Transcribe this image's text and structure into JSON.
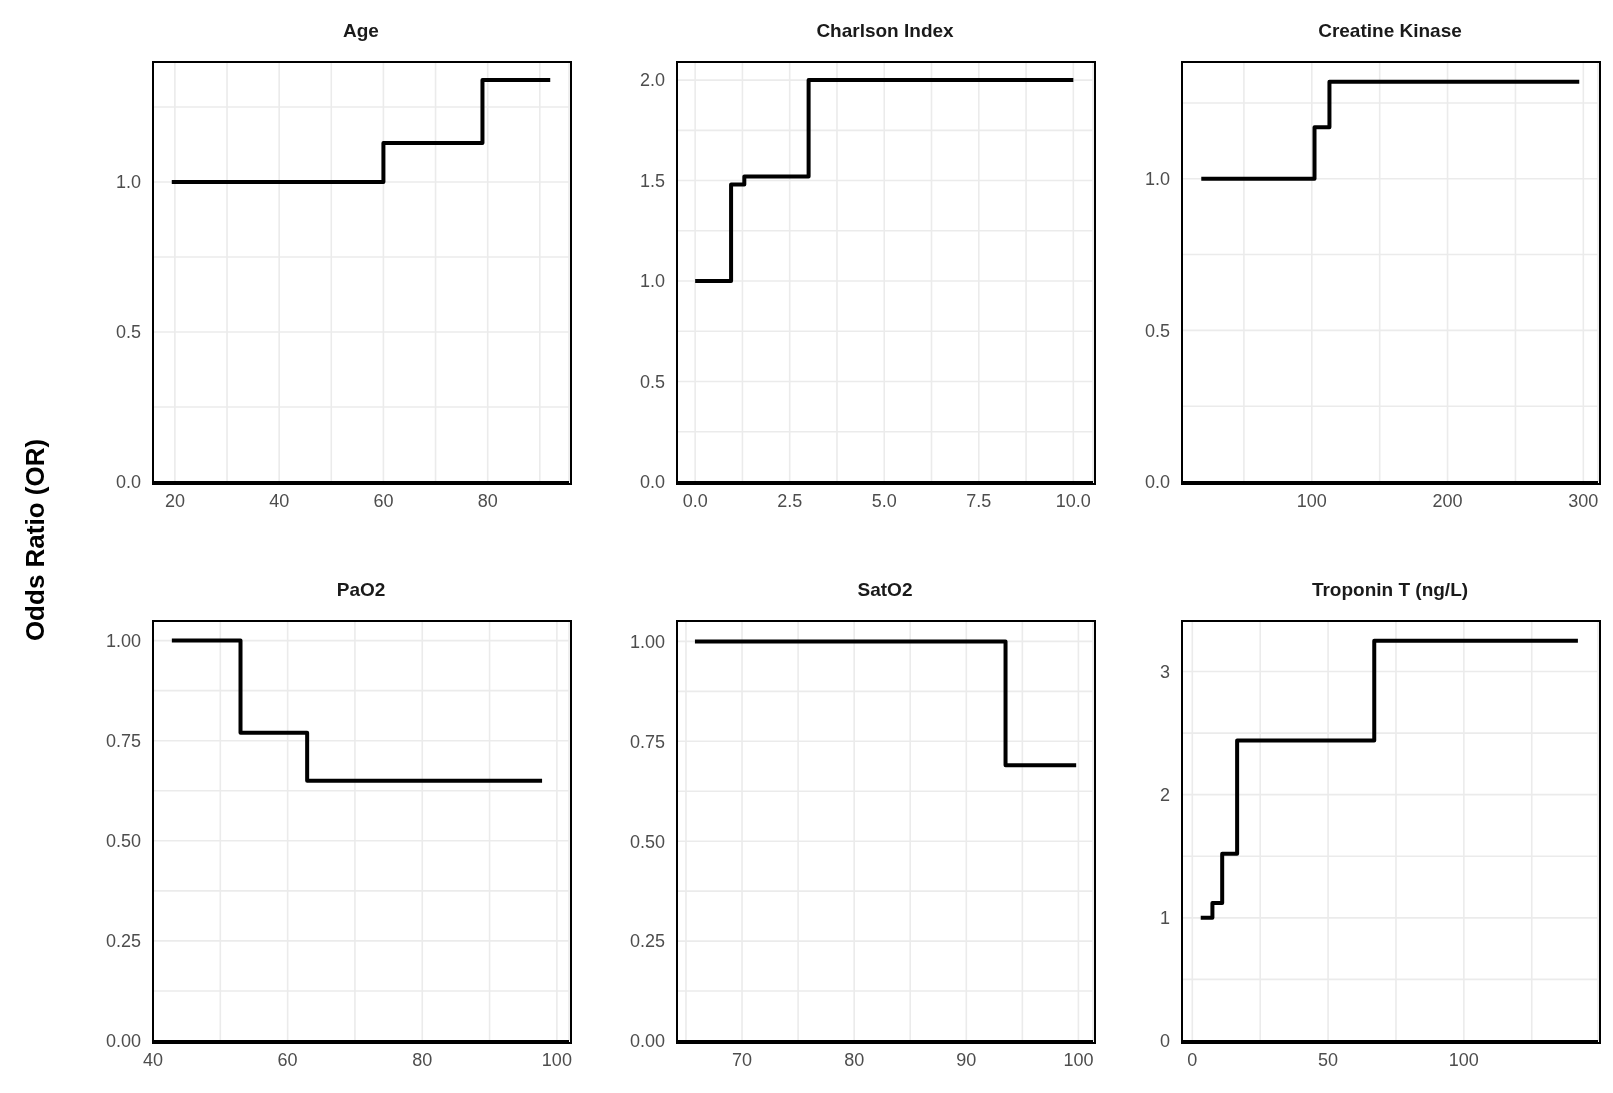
{
  "chart_data": [
    {
      "type": "step",
      "title": "Age",
      "ylabel": "Odds Ratio (OR)",
      "x": [
        19.4,
        60,
        79,
        92
      ],
      "values": [
        1,
        1.13,
        1.34,
        1.34
      ],
      "color": "#000000",
      "xlim": [
        15.8,
        95.6
      ],
      "ylim": [
        0,
        1.4
      ],
      "xticks": [
        20,
        {
          "value": 30,
          "label": null
        },
        40,
        {
          "value": 50,
          "label": null
        },
        60,
        {
          "value": 70,
          "label": null
        },
        80,
        {
          "value": 90,
          "label": null
        }
      ],
      "yticks": [
        {
          "value": 0,
          "label": "0.0"
        },
        {
          "value": 0.25,
          "label": null
        },
        {
          "value": 0.5,
          "label": "0.5"
        },
        {
          "value": 0.75,
          "label": null
        },
        {
          "value": 1,
          "label": "1.0"
        },
        {
          "value": 1.25,
          "label": null
        }
      ],
      "grid": true
    },
    {
      "type": "step",
      "title": "Charlson Index",
      "x": [
        0,
        0.95,
        1.3,
        3,
        10
      ],
      "values": [
        1,
        1.48,
        1.52,
        2,
        2
      ],
      "color": "#000000",
      "xlim": [
        -0.48,
        10.52
      ],
      "ylim": [
        0,
        2.09
      ],
      "xticks": [
        {
          "value": 0,
          "label": "0.0"
        },
        {
          "value": 1.25,
          "label": null
        },
        2.5,
        {
          "value": 3.75,
          "label": null
        },
        {
          "value": 5,
          "label": "5.0"
        },
        {
          "value": 6.25,
          "label": null
        },
        7.5,
        {
          "value": 8.75,
          "label": null
        },
        {
          "value": 10,
          "label": "10.0"
        }
      ],
      "yticks": [
        {
          "value": 0,
          "label": "0.0"
        },
        {
          "value": 0.25,
          "label": null
        },
        0.5,
        {
          "value": 0.75,
          "label": null
        },
        {
          "value": 1,
          "label": "1.0"
        },
        {
          "value": 1.25,
          "label": null
        },
        1.5,
        {
          "value": 1.75,
          "label": null
        },
        {
          "value": 2,
          "label": "2.0"
        }
      ],
      "grid": true
    },
    {
      "type": "step",
      "title": "Creatine Kinase",
      "x": [
        18.6,
        102,
        113,
        297
      ],
      "values": [
        1,
        1.17,
        1.32,
        1.32
      ],
      "color": "#000000",
      "xlim": [
        4.4,
        310.8
      ],
      "ylim": [
        0,
        1.385
      ],
      "xticks": [
        {
          "value": 50,
          "label": null
        },
        100,
        {
          "value": 150,
          "label": null
        },
        200,
        {
          "value": 250,
          "label": null
        },
        300
      ],
      "yticks": [
        {
          "value": 0,
          "label": "0.0"
        },
        {
          "value": 0.25,
          "label": null
        },
        0.5,
        {
          "value": 0.75,
          "label": null
        },
        {
          "value": 1,
          "label": "1.0"
        },
        {
          "value": 1.25,
          "label": null
        }
      ],
      "grid": true
    },
    {
      "type": "step",
      "title": "PaO2",
      "x": [
        42.8,
        53,
        62.9,
        97.8
      ],
      "values": [
        1,
        0.77,
        0.65,
        0.65
      ],
      "color": "#000000",
      "xlim": [
        40,
        101.8
      ],
      "ylim": [
        0,
        1.049
      ],
      "xticks": [
        40,
        {
          "value": 50,
          "label": null
        },
        60,
        {
          "value": 70,
          "label": null
        },
        80,
        {
          "value": 90,
          "label": null
        },
        100
      ],
      "yticks": [
        {
          "value": 0,
          "label": "0.00"
        },
        {
          "value": 0.125,
          "label": null
        },
        0.25,
        {
          "value": 0.375,
          "label": null
        },
        {
          "value": 0.5,
          "label": "0.50"
        },
        {
          "value": 0.625,
          "label": null
        },
        0.75,
        {
          "value": 0.875,
          "label": null
        },
        {
          "value": 1,
          "label": "1.00"
        }
      ],
      "grid": true
    },
    {
      "type": "step",
      "title": "SatO2",
      "x": [
        65.8,
        93.5,
        99.8
      ],
      "values": [
        1,
        0.69,
        0.69
      ],
      "color": "#000000",
      "xlim": [
        64.2,
        101.3
      ],
      "ylim": [
        0,
        1.051
      ],
      "xticks": [
        {
          "value": 65,
          "label": null
        },
        70,
        {
          "value": 75,
          "label": null
        },
        80,
        {
          "value": 85,
          "label": null
        },
        90,
        {
          "value": 95,
          "label": null
        },
        100
      ],
      "yticks": [
        {
          "value": 0,
          "label": "0.00"
        },
        {
          "value": 0.125,
          "label": null
        },
        0.25,
        {
          "value": 0.375,
          "label": null
        },
        {
          "value": 0.5,
          "label": "0.50"
        },
        {
          "value": 0.625,
          "label": null
        },
        0.75,
        {
          "value": 0.875,
          "label": null
        },
        {
          "value": 1,
          "label": "1.00"
        }
      ],
      "grid": true
    },
    {
      "type": "step",
      "title": "Troponin T (ng/L)",
      "x": [
        3.1,
        7.4,
        11,
        16.5,
        67,
        142
      ],
      "values": [
        1,
        1.12,
        1.52,
        2.44,
        3.25,
        3.25
      ],
      "color": "#000000",
      "xlim": [
        -3.8,
        149.4
      ],
      "ylim": [
        0,
        3.41
      ],
      "xticks": [
        0,
        {
          "value": 25,
          "label": null
        },
        50,
        {
          "value": 75,
          "label": null
        },
        100,
        {
          "value": 125,
          "label": null
        }
      ],
      "yticks": [
        0,
        {
          "value": 0.5,
          "label": null
        },
        1,
        {
          "value": 1.5,
          "label": null
        },
        2,
        {
          "value": 2.5,
          "label": null
        },
        3
      ],
      "grid": true
    }
  ]
}
